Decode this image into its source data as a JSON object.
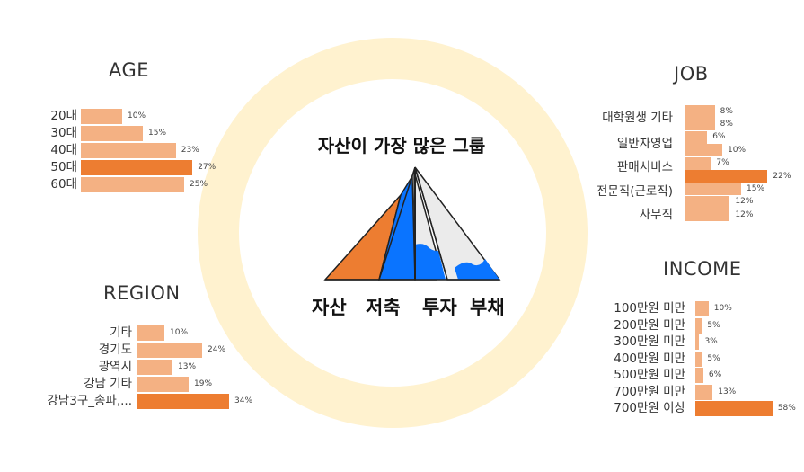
{
  "center": {
    "title": "자산이 가장 많은 그룹",
    "labels": [
      "자산",
      "저축",
      "투자",
      "부채"
    ],
    "colors": {
      "asset": "#ed7d31",
      "saving": "#0a74ff",
      "invest": "#ebebeb",
      "debt": "#0a74ff"
    }
  },
  "colors": {
    "highlight": "#ed7d31",
    "normal": "#f4b183",
    "ring": "#fff2cf"
  },
  "chart_data": [
    {
      "type": "bar",
      "title": "AGE",
      "categories": [
        "20대",
        "30대",
        "40대",
        "50대",
        "60대"
      ],
      "values": [
        10,
        15,
        23,
        27,
        25
      ],
      "value_labels": [
        "10%",
        "15%",
        "23%",
        "27%",
        "25%"
      ],
      "highlight_index": 3
    },
    {
      "type": "bar",
      "title": "REGION",
      "categories": [
        "기타",
        "경기도",
        "광역시",
        "강남 기타",
        "강남3구_송파,..."
      ],
      "values": [
        10,
        24,
        13,
        19,
        34
      ],
      "value_labels": [
        "10%",
        "24%",
        "13%",
        "19%",
        "34%"
      ],
      "highlight_index": 4
    },
    {
      "type": "bar",
      "title": "JOB",
      "categories": [
        "대학원생",
        "기타",
        "일반자영업",
        "",
        "판매서비스",
        "",
        "전문직(근로직)",
        "",
        "사무직"
      ],
      "values": [
        8,
        8,
        6,
        10,
        7,
        22,
        15,
        12,
        12
      ],
      "value_labels": [
        "8%",
        "8%",
        "6%",
        "10%",
        "7%",
        "22%",
        "15%",
        "12%",
        "12%"
      ],
      "highlight_index": 5
    },
    {
      "type": "bar",
      "title": "INCOME",
      "categories": [
        "100만원 미만",
        "200만원 미만",
        "300만원 미만",
        "400만원 미만",
        "500만원 미만",
        "700만원 미만",
        "700만원 이상"
      ],
      "values": [
        10,
        5,
        3,
        5,
        6,
        13,
        58
      ],
      "value_labels": [
        "10%",
        "5%",
        "3%",
        "5%",
        "6%",
        "13%",
        "58%"
      ],
      "highlight_index": 6
    }
  ]
}
